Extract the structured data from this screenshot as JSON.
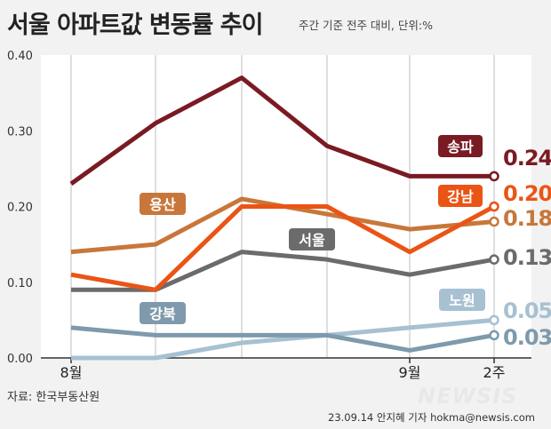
{
  "header": {
    "title": "서울 아파트값 변동률 추이",
    "subtitle": "주간 기준 전주 대비, 단위:%"
  },
  "footer": {
    "source": "자료: 한국부동산원",
    "logo": "NEWSIS",
    "credit": "23.09.14 안지혜 기자 hokma@newsis.com"
  },
  "chart_data": {
    "type": "line",
    "title": "서울 아파트값 변동률 추이",
    "subtitle": "주간 기준 전주 대비, 단위:%",
    "x": [
      "8월",
      "",
      "",
      "",
      "9월",
      "2주"
    ],
    "x_tick_labels": [
      "8월",
      "9월",
      "2주"
    ],
    "ylim": [
      0,
      0.4
    ],
    "y_ticks": [
      "0.00",
      "0.10",
      "0.20",
      "0.30",
      "0.40"
    ],
    "grid": "vertical",
    "series": [
      {
        "name": "송파",
        "values": [
          0.23,
          0.31,
          0.37,
          0.28,
          0.24,
          0.24
        ],
        "end_label": "0.24",
        "color": "#7a1a22",
        "label_style": "filled"
      },
      {
        "name": "강남",
        "values": [
          0.11,
          0.09,
          0.2,
          0.2,
          0.14,
          0.2
        ],
        "end_label": "0.20",
        "color": "#ea5415",
        "label_style": "filled"
      },
      {
        "name": "용산",
        "values": [
          0.14,
          0.15,
          0.21,
          0.19,
          0.17,
          0.18
        ],
        "end_label": "0.18",
        "color": "#c8773a",
        "label_style": "filled"
      },
      {
        "name": "서울",
        "values": [
          0.09,
          0.09,
          0.14,
          0.13,
          0.11,
          0.13
        ],
        "end_label": "0.13",
        "color": "#6b6b6b",
        "label_style": "filled"
      },
      {
        "name": "노원",
        "values": [
          0.0,
          0.0,
          0.02,
          0.03,
          0.04,
          0.05
        ],
        "end_label": "0.05",
        "color": "#a7c0d2",
        "label_style": "filled"
      },
      {
        "name": "강북",
        "values": [
          0.04,
          0.03,
          0.03,
          0.03,
          0.01,
          0.03
        ],
        "end_label": "0.03",
        "color": "#7e9aac",
        "label_style": "filled"
      }
    ]
  }
}
